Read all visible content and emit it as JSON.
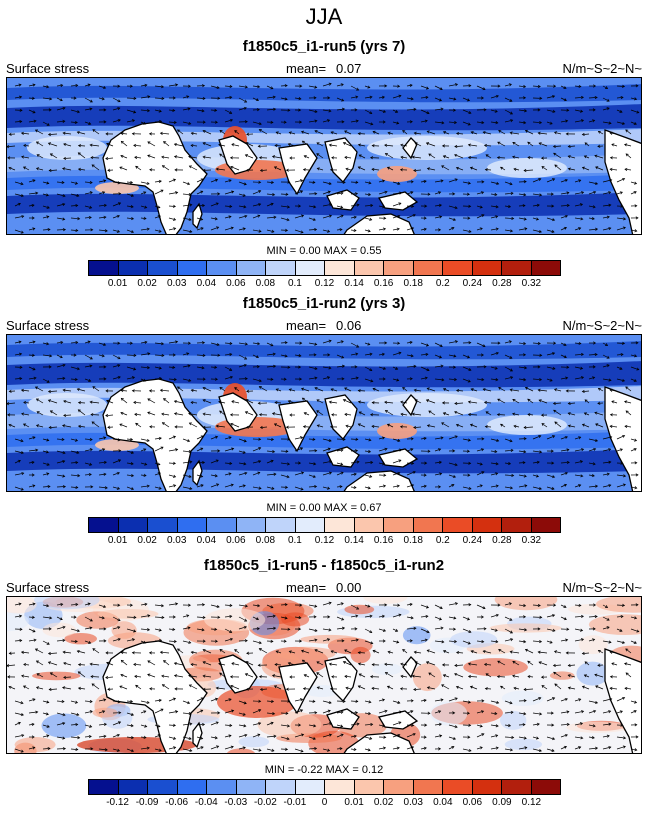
{
  "main_title": "JJA",
  "variable_label": "Surface stress",
  "units_label": "N/m~S~2~N~",
  "panels": [
    {
      "title": "f1850c5_i1-run5 (yrs 7)",
      "mean_label": "mean=",
      "mean_value": "0.07",
      "show_units": true,
      "minmax": "MIN =   0.00 MAX =   0.55",
      "palette": "abs"
    },
    {
      "title": "f1850c5_i1-run2 (yrs 3)",
      "mean_label": "mean=",
      "mean_value": "0.06",
      "show_units": true,
      "minmax": "MIN =   0.00 MAX =   0.67",
      "palette": "abs"
    },
    {
      "title": "f1850c5_i1-run5 - f1850c5_i1-run2",
      "mean_label": "mean=",
      "mean_value": "0.00",
      "show_units": true,
      "minmax": "MIN =  -0.22 MAX =   0.12",
      "palette": "diff"
    }
  ],
  "colorbar_abs": {
    "colors": [
      "#05108f",
      "#0b2fb0",
      "#1a4fd0",
      "#2f6ef0",
      "#5b8ff2",
      "#8fb4f6",
      "#bfd4fa",
      "#e2ecfc",
      "#fde6d8",
      "#fbc6ad",
      "#f7a07f",
      "#f17650",
      "#ea4c26",
      "#d4300f",
      "#b21f0d",
      "#8c0b08"
    ],
    "labels": [
      "0.01",
      "0.02",
      "0.03",
      "0.04",
      "0.06",
      "0.08",
      "0.1",
      "0.12",
      "0.14",
      "0.16",
      "0.18",
      "0.2",
      "0.24",
      "0.28",
      "0.32"
    ]
  },
  "colorbar_diff": {
    "colors": [
      "#05108f",
      "#0b2fb0",
      "#1a4fd0",
      "#2f6ef0",
      "#5b8ff2",
      "#8fb4f6",
      "#bfd4fa",
      "#e2ecfc",
      "#fde6d8",
      "#fbc6ad",
      "#f7a07f",
      "#f17650",
      "#ea4c26",
      "#d4300f",
      "#b21f0d",
      "#8c0b08"
    ],
    "labels": [
      "-0.12",
      "-0.09",
      "-0.06",
      "-0.04",
      "-0.03",
      "-0.02",
      "-0.01",
      "0",
      "0.01",
      "0.02",
      "0.03",
      "0.04",
      "0.06",
      "0.09",
      "0.12"
    ]
  },
  "chart_data": {
    "type": "heatmap",
    "title": "JJA",
    "season": "JJA",
    "variable": "Surface stress",
    "units": "N/m~S~2~N~",
    "fields": [
      {
        "name": "f1850c5_i1-run5 (yrs 7)",
        "mean": 0.07,
        "min": 0.0,
        "max": 0.55,
        "levels": [
          0.01,
          0.02,
          0.03,
          0.04,
          0.06,
          0.08,
          0.1,
          0.12,
          0.14,
          0.16,
          0.18,
          0.2,
          0.24,
          0.28,
          0.32
        ]
      },
      {
        "name": "f1850c5_i1-run2 (yrs 3)",
        "mean": 0.06,
        "min": 0.0,
        "max": 0.67,
        "levels": [
          0.01,
          0.02,
          0.03,
          0.04,
          0.06,
          0.08,
          0.1,
          0.12,
          0.14,
          0.16,
          0.18,
          0.2,
          0.24,
          0.28,
          0.32
        ]
      },
      {
        "name": "f1850c5_i1-run5 - f1850c5_i1-run2",
        "mean": 0.0,
        "min": -0.22,
        "max": 0.12,
        "levels": [
          -0.12,
          -0.09,
          -0.06,
          -0.04,
          -0.03,
          -0.02,
          -0.01,
          0,
          0.01,
          0.02,
          0.03,
          0.04,
          0.06,
          0.09,
          0.12
        ]
      }
    ]
  }
}
